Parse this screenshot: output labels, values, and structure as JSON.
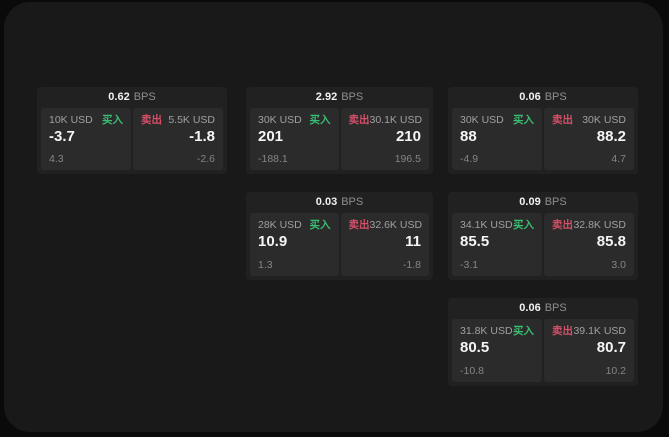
{
  "theme": {
    "outer_bg": "#0a0a0a",
    "panel_bg": "#191919",
    "card_bg": "#212121",
    "tile_bg": "#2b2b2b",
    "text_primary": "#f5f5f5",
    "text_muted": "#8e8e8e",
    "buy_color": "#3abc72",
    "sell_color": "#d44f67"
  },
  "labels": {
    "bps": "BPS",
    "buy": "买入",
    "sell": "卖出"
  },
  "cards": [
    {
      "bps": "0.62",
      "buy_size": "10K USD",
      "buy_value": "-3.7",
      "buy_delta": "4.3",
      "sell_size": "5.5K USD",
      "sell_value": "-1.8",
      "sell_delta": "-2.6"
    },
    {
      "bps": "2.92",
      "buy_size": "30K USD",
      "buy_value": "201",
      "buy_delta": "-188.1",
      "sell_size": "30.1K USD",
      "sell_value": "210",
      "sell_delta": "196.5"
    },
    {
      "bps": "0.06",
      "buy_size": "30K USD",
      "buy_value": "88",
      "buy_delta": "-4.9",
      "sell_size": "30K USD",
      "sell_value": "88.2",
      "sell_delta": "4.7"
    },
    {
      "bps": "0.03",
      "buy_size": "28K USD",
      "buy_value": "10.9",
      "buy_delta": "1.3",
      "sell_size": "32.6K USD",
      "sell_value": "11",
      "sell_delta": "-1.8"
    },
    {
      "bps": "0.09",
      "buy_size": "34.1K USD",
      "buy_value": "85.5",
      "buy_delta": "-3.1",
      "sell_size": "32.8K USD",
      "sell_value": "85.8",
      "sell_delta": "3.0"
    },
    {
      "bps": "0.06",
      "buy_size": "31.8K USD",
      "buy_value": "80.5",
      "buy_delta": "-10.8",
      "sell_size": "39.1K USD",
      "sell_value": "80.7",
      "sell_delta": "10.2"
    }
  ]
}
